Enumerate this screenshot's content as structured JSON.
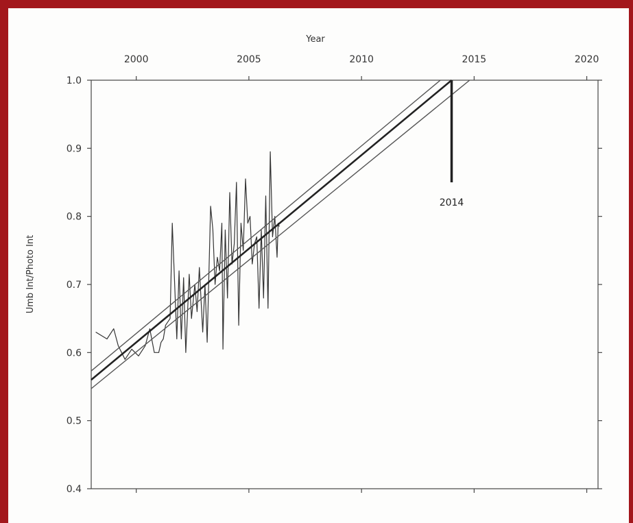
{
  "chart_data": {
    "type": "line",
    "xlabel": "Year",
    "ylabel": "Umb Int/Photo Int",
    "xlim": [
      1998,
      2020.5
    ],
    "ylim": [
      0.4,
      1.0
    ],
    "xticks": [
      2000,
      2005,
      2010,
      2015,
      2020
    ],
    "yticks": [
      0.4,
      0.5,
      0.6,
      0.7,
      0.8,
      0.9,
      1.0
    ],
    "ytick_labels": [
      "0.4",
      "0.5",
      "0.6",
      "0.7",
      "0.8",
      "0.9",
      "1.0"
    ],
    "x_axis_position": "top",
    "grid": false,
    "annotation": {
      "text": "2014",
      "x": 2014,
      "y_top": 1.0,
      "y_bottom": 0.85
    },
    "series": [
      {
        "style": "thin",
        "color": "#333333",
        "x": [
          1998.2,
          1998.7,
          1999.0,
          1999.2,
          1999.5,
          1999.8,
          2000.1,
          2000.4,
          2000.6,
          2000.8,
          2001.0,
          2001.1,
          2001.2,
          2001.3,
          2001.5,
          2001.6,
          2001.8,
          2001.9,
          2002.0,
          2002.1,
          2002.2,
          2002.35,
          2002.45,
          2002.6,
          2002.7,
          2002.8,
          2002.95,
          2003.05,
          2003.15,
          2003.3,
          2003.4,
          2003.5,
          2003.6,
          2003.7,
          2003.8,
          2003.85,
          2003.95,
          2004.05,
          2004.15,
          2004.25,
          2004.35,
          2004.45,
          2004.55,
          2004.65,
          2004.75,
          2004.85,
          2004.95,
          2005.05,
          2005.15,
          2005.25,
          2005.35,
          2005.45,
          2005.55,
          2005.65,
          2005.75,
          2005.85,
          2005.95,
          2006.05,
          2006.15,
          2006.25,
          2006.3,
          2006.35
        ],
        "y": [
          0.63,
          0.62,
          0.635,
          0.61,
          0.59,
          0.605,
          0.595,
          0.61,
          0.635,
          0.6,
          0.6,
          0.615,
          0.62,
          0.64,
          0.65,
          0.79,
          0.62,
          0.72,
          0.62,
          0.71,
          0.6,
          0.715,
          0.65,
          0.7,
          0.66,
          0.725,
          0.63,
          0.7,
          0.615,
          0.815,
          0.78,
          0.7,
          0.74,
          0.72,
          0.79,
          0.605,
          0.78,
          0.68,
          0.835,
          0.73,
          0.76,
          0.85,
          0.64,
          0.79,
          0.75,
          0.855,
          0.79,
          0.8,
          0.73,
          0.76,
          0.77,
          0.665,
          0.78,
          0.68,
          0.83,
          0.665,
          0.895,
          0.77,
          0.8,
          0.74,
          0.79,
          0.785
        ]
      },
      {
        "style": "fit",
        "color": "#222222",
        "x": [
          1998,
          2014
        ],
        "y": [
          0.56,
          1.0
        ]
      },
      {
        "style": "confidence",
        "color": "#555555",
        "x": [
          1998,
          2013.5
        ],
        "y": [
          0.573,
          1.0
        ]
      },
      {
        "style": "confidence",
        "color": "#555555",
        "x": [
          1998,
          2014.8
        ],
        "y": [
          0.547,
          1.0
        ]
      }
    ]
  }
}
